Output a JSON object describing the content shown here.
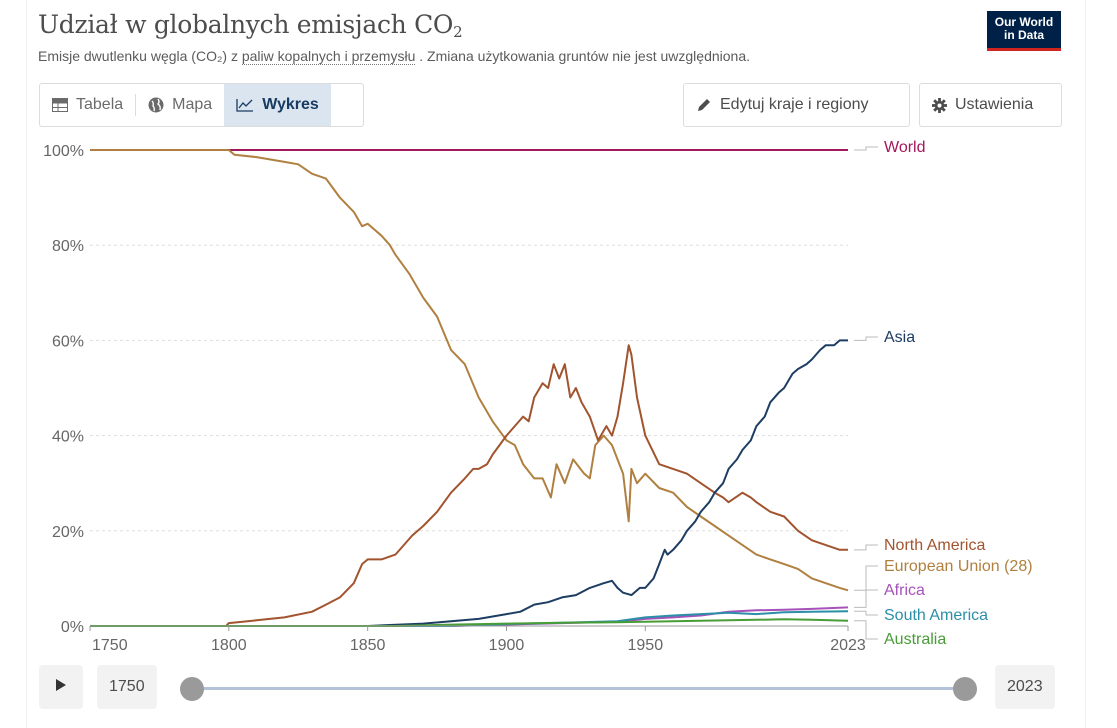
{
  "header": {
    "title_main": "Udział w globalnych emisjach CO",
    "title_sub": "2",
    "subtitle_pre": "Emisje dwutlenku węgla (CO₂) z ",
    "subtitle_link": "paliw kopalnych i przemysłu",
    "subtitle_post": " . Zmiana użytkowania gruntów nie jest uwzględniona.",
    "logo_line1": "Our World",
    "logo_line2": "in Data"
  },
  "toolbar": {
    "tabs": [
      {
        "label": "Tabela",
        "icon": "table-icon",
        "active": false
      },
      {
        "label": "Mapa",
        "icon": "globe-icon",
        "active": false
      },
      {
        "label": "Wykres",
        "icon": "line-chart-icon",
        "active": true
      }
    ],
    "edit_label": "Edytuj kraje i regiony",
    "settings_label": "Ustawienia"
  },
  "timeline": {
    "start_year": "1750",
    "end_year": "2023"
  },
  "chart_data": {
    "type": "line",
    "title": "Udział w globalnych emisjach CO₂",
    "xlim": [
      1750,
      2023
    ],
    "ylim": [
      0,
      100
    ],
    "x_ticks": [
      "1750",
      "1800",
      "1850",
      "1900",
      "1950",
      "2023"
    ],
    "y_ticks": [
      "0%",
      "20%",
      "40%",
      "60%",
      "80%",
      "100%"
    ],
    "grid": true,
    "legend": "right-inline-labels",
    "series": [
      {
        "name": "World",
        "color": "#a2185b",
        "points": [
          [
            1750,
            100
          ],
          [
            2023,
            100
          ]
        ]
      },
      {
        "name": "European Union (28)",
        "color": "#b08040",
        "points": [
          [
            1750,
            100
          ],
          [
            1790,
            100
          ],
          [
            1800,
            100
          ],
          [
            1802,
            99
          ],
          [
            1810,
            98.5
          ],
          [
            1820,
            97.5
          ],
          [
            1825,
            97
          ],
          [
            1830,
            95
          ],
          [
            1835,
            94
          ],
          [
            1840,
            90
          ],
          [
            1845,
            87
          ],
          [
            1848,
            84
          ],
          [
            1850,
            84.5
          ],
          [
            1855,
            82
          ],
          [
            1858,
            80
          ],
          [
            1860,
            78
          ],
          [
            1865,
            74
          ],
          [
            1868,
            71
          ],
          [
            1870,
            69
          ],
          [
            1875,
            65
          ],
          [
            1880,
            58
          ],
          [
            1885,
            55
          ],
          [
            1890,
            48
          ],
          [
            1895,
            43
          ],
          [
            1900,
            39
          ],
          [
            1903,
            38
          ],
          [
            1906,
            34
          ],
          [
            1910,
            31
          ],
          [
            1913,
            31
          ],
          [
            1916,
            27
          ],
          [
            1918,
            34
          ],
          [
            1921,
            30
          ],
          [
            1924,
            35
          ],
          [
            1928,
            32
          ],
          [
            1930,
            31
          ],
          [
            1932,
            38
          ],
          [
            1935,
            40
          ],
          [
            1938,
            38
          ],
          [
            1940,
            35
          ],
          [
            1942,
            32
          ],
          [
            1944,
            22
          ],
          [
            1945,
            33
          ],
          [
            1947,
            30
          ],
          [
            1950,
            32
          ],
          [
            1955,
            29
          ],
          [
            1960,
            28
          ],
          [
            1965,
            25
          ],
          [
            1970,
            23
          ],
          [
            1975,
            21
          ],
          [
            1980,
            19
          ],
          [
            1985,
            17
          ],
          [
            1990,
            15
          ],
          [
            1995,
            14
          ],
          [
            2000,
            13
          ],
          [
            2005,
            12
          ],
          [
            2010,
            10
          ],
          [
            2015,
            9
          ],
          [
            2020,
            8
          ],
          [
            2023,
            7.5
          ]
        ]
      },
      {
        "name": "North America",
        "color": "#a1542e",
        "points": [
          [
            1750,
            0
          ],
          [
            1799,
            0
          ],
          [
            1800,
            0.6
          ],
          [
            1810,
            1.2
          ],
          [
            1820,
            1.8
          ],
          [
            1830,
            3
          ],
          [
            1835,
            4.5
          ],
          [
            1840,
            6
          ],
          [
            1845,
            9
          ],
          [
            1848,
            13
          ],
          [
            1850,
            14
          ],
          [
            1855,
            14
          ],
          [
            1860,
            15
          ],
          [
            1863,
            17
          ],
          [
            1866,
            19
          ],
          [
            1870,
            21
          ],
          [
            1875,
            24
          ],
          [
            1880,
            28
          ],
          [
            1885,
            31
          ],
          [
            1888,
            33
          ],
          [
            1890,
            33
          ],
          [
            1893,
            34
          ],
          [
            1895,
            36
          ],
          [
            1900,
            40
          ],
          [
            1903,
            42
          ],
          [
            1906,
            44
          ],
          [
            1908,
            43
          ],
          [
            1910,
            48
          ],
          [
            1913,
            51
          ],
          [
            1915,
            50
          ],
          [
            1917,
            55
          ],
          [
            1919,
            52
          ],
          [
            1921,
            55
          ],
          [
            1923,
            48
          ],
          [
            1925,
            50
          ],
          [
            1927,
            47
          ],
          [
            1930,
            44
          ],
          [
            1933,
            39
          ],
          [
            1936,
            42
          ],
          [
            1938,
            40
          ],
          [
            1940,
            44
          ],
          [
            1942,
            51
          ],
          [
            1944,
            59
          ],
          [
            1945,
            57
          ],
          [
            1947,
            48
          ],
          [
            1950,
            40
          ],
          [
            1955,
            34
          ],
          [
            1960,
            33
          ],
          [
            1965,
            32
          ],
          [
            1970,
            30
          ],
          [
            1975,
            28
          ],
          [
            1978,
            27
          ],
          [
            1980,
            26
          ],
          [
            1985,
            28
          ],
          [
            1988,
            27
          ],
          [
            1990,
            26
          ],
          [
            1995,
            24
          ],
          [
            2000,
            23
          ],
          [
            2005,
            20
          ],
          [
            2010,
            18
          ],
          [
            2015,
            17
          ],
          [
            2020,
            16
          ],
          [
            2023,
            16
          ]
        ]
      },
      {
        "name": "Asia",
        "color": "#1d3d63",
        "points": [
          [
            1750,
            0
          ],
          [
            1850,
            0
          ],
          [
            1870,
            0.5
          ],
          [
            1880,
            1
          ],
          [
            1890,
            1.5
          ],
          [
            1900,
            2.5
          ],
          [
            1905,
            3
          ],
          [
            1910,
            4.5
          ],
          [
            1915,
            5
          ],
          [
            1920,
            6
          ],
          [
            1925,
            6.5
          ],
          [
            1930,
            8
          ],
          [
            1935,
            9
          ],
          [
            1938,
            9.5
          ],
          [
            1940,
            8
          ],
          [
            1942,
            7
          ],
          [
            1945,
            6.5
          ],
          [
            1948,
            8
          ],
          [
            1950,
            8
          ],
          [
            1953,
            10
          ],
          [
            1955,
            13
          ],
          [
            1957,
            16
          ],
          [
            1958,
            15
          ],
          [
            1960,
            16
          ],
          [
            1963,
            18
          ],
          [
            1965,
            20
          ],
          [
            1968,
            22
          ],
          [
            1970,
            24
          ],
          [
            1973,
            26
          ],
          [
            1975,
            28
          ],
          [
            1978,
            30
          ],
          [
            1980,
            33
          ],
          [
            1983,
            35
          ],
          [
            1985,
            37
          ],
          [
            1988,
            39
          ],
          [
            1990,
            42
          ],
          [
            1993,
            44
          ],
          [
            1995,
            47
          ],
          [
            1998,
            49
          ],
          [
            2000,
            50
          ],
          [
            2003,
            53
          ],
          [
            2005,
            54
          ],
          [
            2008,
            55
          ],
          [
            2010,
            56
          ],
          [
            2013,
            58
          ],
          [
            2015,
            59
          ],
          [
            2018,
            59
          ],
          [
            2020,
            60
          ],
          [
            2023,
            60
          ]
        ]
      },
      {
        "name": "Africa",
        "color": "#a652ba",
        "points": [
          [
            1750,
            0
          ],
          [
            1880,
            0
          ],
          [
            1900,
            0.3
          ],
          [
            1920,
            0.6
          ],
          [
            1940,
            0.9
          ],
          [
            1950,
            1.5
          ],
          [
            1960,
            1.8
          ],
          [
            1970,
            2.2
          ],
          [
            1980,
            3
          ],
          [
            1990,
            3.3
          ],
          [
            2000,
            3.4
          ],
          [
            2010,
            3.6
          ],
          [
            2023,
            3.9
          ]
        ]
      },
      {
        "name": "South America",
        "color": "#2c8fa8",
        "points": [
          [
            1750,
            0
          ],
          [
            1880,
            0
          ],
          [
            1900,
            0.4
          ],
          [
            1920,
            0.7
          ],
          [
            1940,
            1
          ],
          [
            1950,
            1.8
          ],
          [
            1960,
            2.2
          ],
          [
            1970,
            2.5
          ],
          [
            1980,
            2.8
          ],
          [
            1990,
            2.5
          ],
          [
            2000,
            2.9
          ],
          [
            2010,
            3
          ],
          [
            2023,
            3.1
          ]
        ]
      },
      {
        "name": "Australia",
        "color": "#489d36",
        "points": [
          [
            1750,
            0
          ],
          [
            1860,
            0
          ],
          [
            1880,
            0.3
          ],
          [
            1900,
            0.5
          ],
          [
            1920,
            0.7
          ],
          [
            1940,
            0.8
          ],
          [
            1950,
            0.9
          ],
          [
            1970,
            1.1
          ],
          [
            1990,
            1.3
          ],
          [
            2000,
            1.4
          ],
          [
            2010,
            1.3
          ],
          [
            2023,
            1.1
          ]
        ]
      }
    ],
    "labels": [
      {
        "name": "World",
        "color": "#a2185b",
        "y": 100
      },
      {
        "name": "Asia",
        "color": "#1d3d63",
        "y": 60
      },
      {
        "name": "North America",
        "color": "#a1542e",
        "y": 16
      },
      {
        "name": "European Union (28)",
        "color": "#b08040",
        "y": 7.5
      },
      {
        "name": "Africa",
        "color": "#a652ba",
        "y": 3.9
      },
      {
        "name": "South America",
        "color": "#2c8fa8",
        "y": 3.1
      },
      {
        "name": "Australia",
        "color": "#489d36",
        "y": 1.1
      }
    ]
  }
}
